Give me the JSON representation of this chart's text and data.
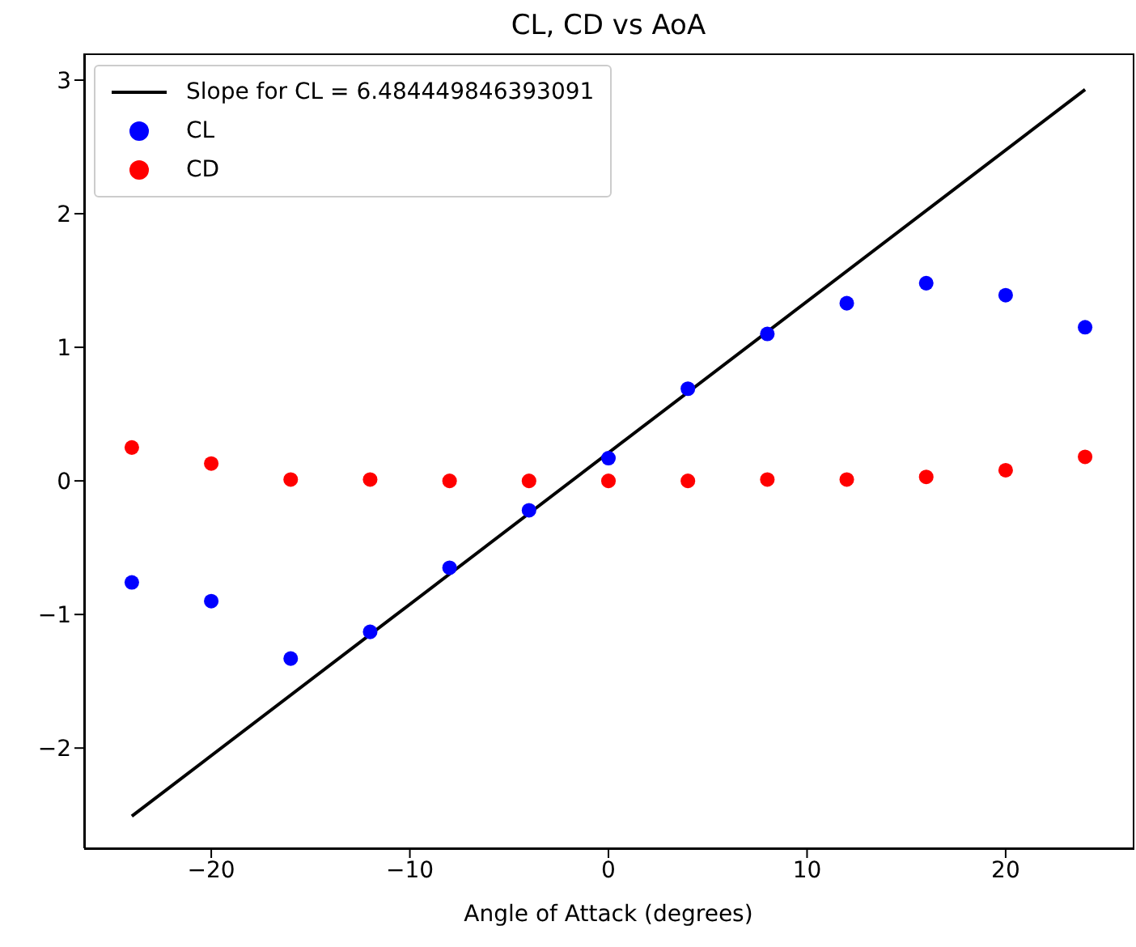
{
  "chart_data": {
    "type": "scatter",
    "title": "CL, CD vs AoA",
    "xlabel": "Angle of Attack (degrees)",
    "x": [
      -24,
      -20,
      -16,
      -12,
      -8,
      -4,
      0,
      4,
      8,
      12,
      16,
      20,
      24
    ],
    "series": [
      {
        "name": "Slope for CL = 6.484449846393091",
        "type": "line",
        "color": "#000000",
        "marker": "none",
        "x": [
          -24,
          24
        ],
        "values": [
          -2.51,
          2.93
        ]
      },
      {
        "name": "CL",
        "color": "#0000ff",
        "marker": "circle",
        "values": [
          -0.76,
          -0.9,
          -1.33,
          -1.13,
          -0.65,
          -0.22,
          0.17,
          0.69,
          1.1,
          1.33,
          1.48,
          1.39,
          1.15
        ]
      },
      {
        "name": "CD",
        "color": "#ff0000",
        "marker": "circle",
        "values": [
          0.25,
          0.13,
          0.01,
          0.01,
          0.0,
          0.0,
          0.0,
          0.0,
          0.01,
          0.01,
          0.03,
          0.08,
          0.18
        ]
      }
    ],
    "xlim": [
      -26.4,
      26.4
    ],
    "xticks": [
      -20,
      -10,
      0,
      10,
      20
    ],
    "ylim": [
      -2.75,
      3.2
    ],
    "yticks": [
      -2,
      -1,
      0,
      1,
      2,
      3
    ],
    "grid": false,
    "legend": "top left"
  }
}
